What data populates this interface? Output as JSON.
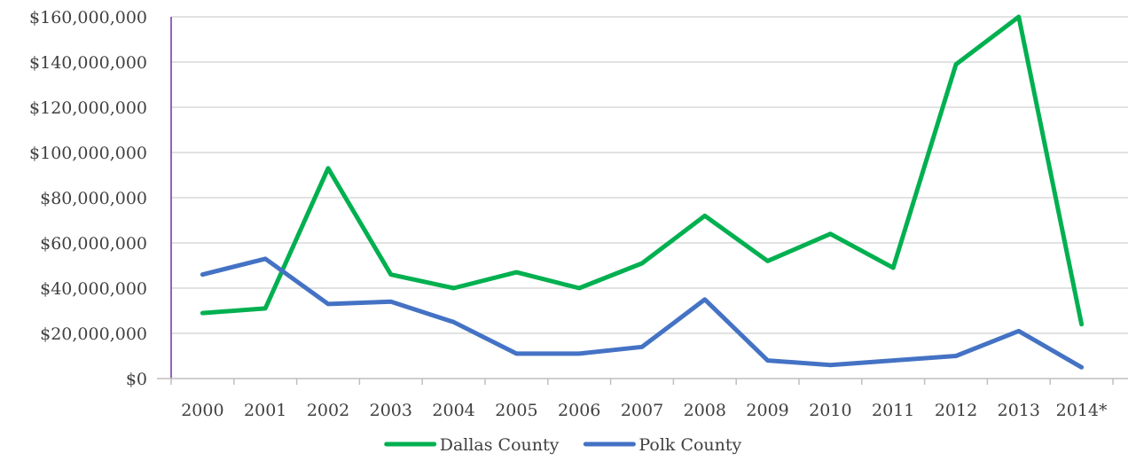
{
  "chart_data": {
    "type": "line",
    "title": "",
    "xlabel": "",
    "ylabel": "",
    "categories": [
      "2000",
      "2001",
      "2002",
      "2003",
      "2004",
      "2005",
      "2006",
      "2007",
      "2008",
      "2009",
      "2010",
      "2011",
      "2012",
      "2013",
      "2014*"
    ],
    "ylim": [
      0,
      160000000
    ],
    "yticks": [
      0,
      20000000,
      40000000,
      60000000,
      80000000,
      100000000,
      120000000,
      140000000,
      160000000
    ],
    "ytick_labels": [
      "$0",
      "$20,000,000",
      "$40,000,000",
      "$60,000,000",
      "$80,000,000",
      "$100,000,000",
      "$120,000,000",
      "$140,000,000",
      "$160,000,000"
    ],
    "grid": true,
    "legend": "bottom",
    "series": [
      {
        "name": "Dallas County",
        "color": "#00b050",
        "values": [
          29000000,
          31000000,
          93000000,
          46000000,
          40000000,
          47000000,
          40000000,
          51000000,
          72000000,
          52000000,
          64000000,
          49000000,
          139000000,
          160000000,
          24000000
        ]
      },
      {
        "name": "Polk County",
        "color": "#4472c4",
        "values": [
          46000000,
          53000000,
          33000000,
          34000000,
          25000000,
          11000000,
          11000000,
          14000000,
          35000000,
          8000000,
          6000000,
          8000000,
          10000000,
          21000000,
          5000000
        ]
      }
    ]
  }
}
